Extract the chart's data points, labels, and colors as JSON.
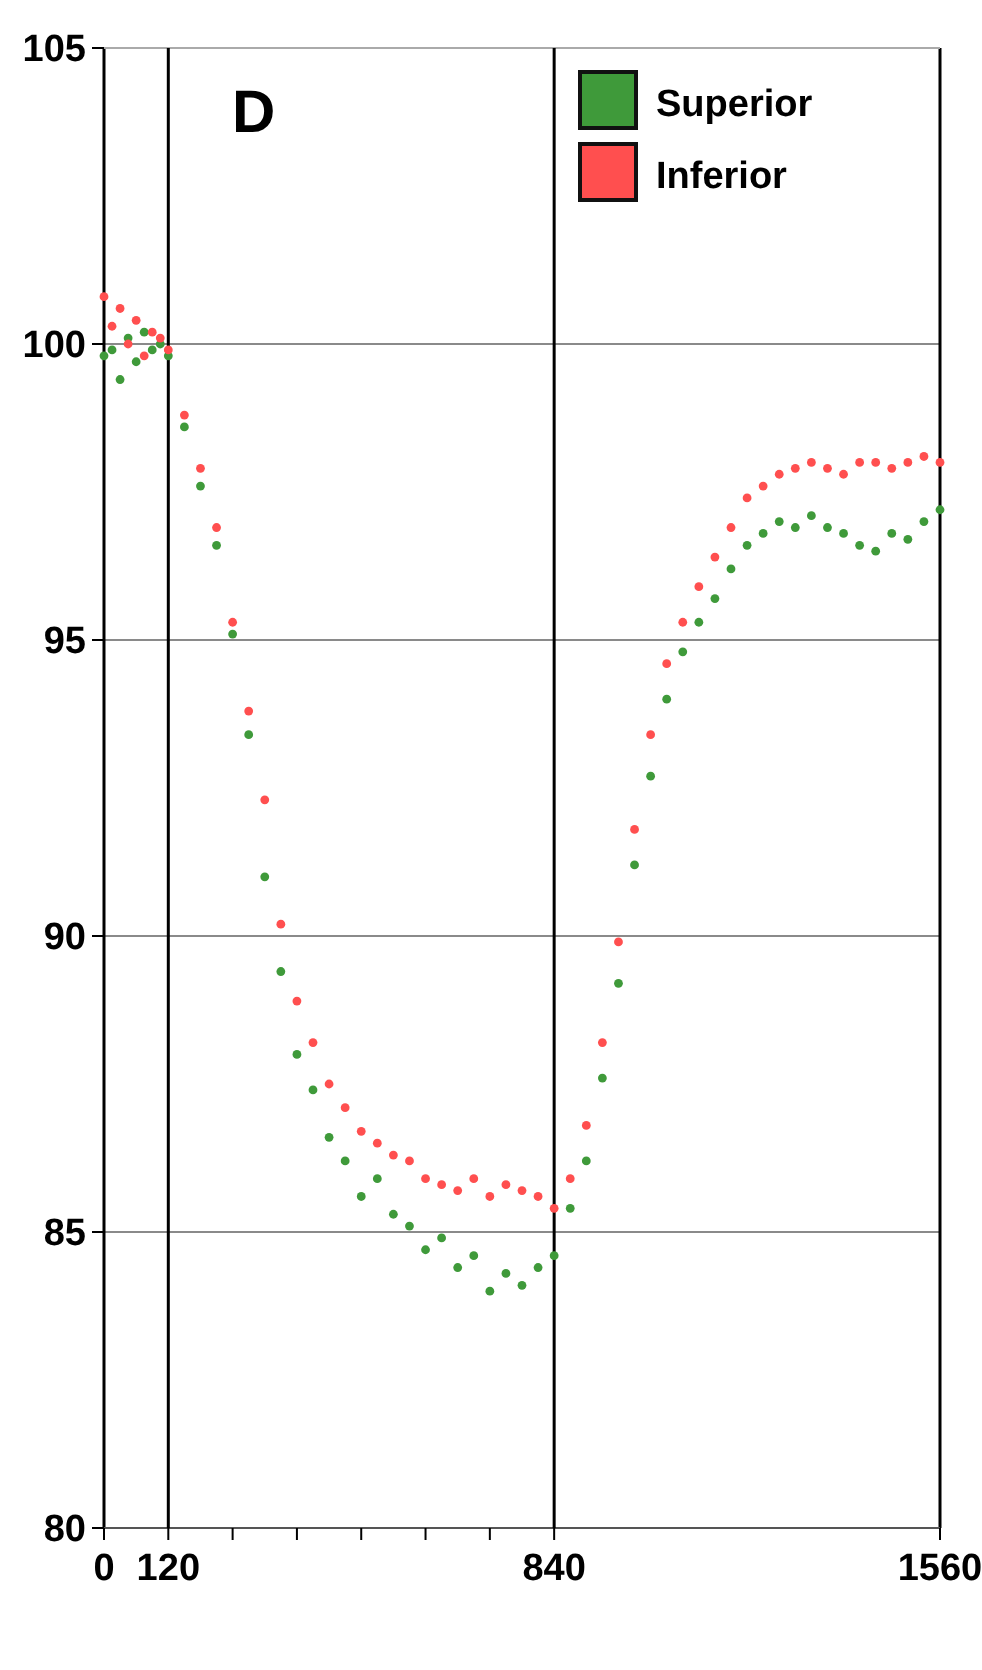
{
  "chart_data": {
    "type": "scatter",
    "annotations": [
      "D"
    ],
    "x": [
      0,
      15,
      30,
      45,
      60,
      75,
      90,
      105,
      120,
      150,
      180,
      210,
      240,
      270,
      300,
      330,
      360,
      390,
      420,
      450,
      480,
      510,
      540,
      570,
      600,
      630,
      660,
      690,
      720,
      750,
      780,
      810,
      840,
      870,
      900,
      930,
      960,
      990,
      1020,
      1050,
      1080,
      1110,
      1140,
      1170,
      1200,
      1230,
      1260,
      1290,
      1320,
      1350,
      1380,
      1410,
      1440,
      1470,
      1500,
      1530,
      1560
    ],
    "series": [
      {
        "name": "Superior",
        "color": "#3f9a3a",
        "values": [
          99.8,
          99.9,
          99.4,
          100.1,
          99.7,
          100.2,
          99.9,
          100.0,
          99.8,
          98.6,
          97.6,
          96.6,
          95.1,
          93.4,
          91.0,
          89.4,
          88.0,
          87.4,
          86.6,
          86.2,
          85.6,
          85.9,
          85.3,
          85.1,
          84.7,
          84.9,
          84.4,
          84.6,
          84.0,
          84.3,
          84.1,
          84.4,
          84.6,
          85.4,
          86.2,
          87.6,
          89.2,
          91.2,
          92.7,
          94.0,
          94.8,
          95.3,
          95.7,
          96.2,
          96.6,
          96.8,
          97.0,
          96.9,
          97.1,
          96.9,
          96.8,
          96.6,
          96.5,
          96.8,
          96.7,
          97.0,
          97.2
        ]
      },
      {
        "name": "Inferior",
        "color": "#ff4f4f",
        "values": [
          100.8,
          100.3,
          100.6,
          100.0,
          100.4,
          99.8,
          100.2,
          100.1,
          99.9,
          98.8,
          97.9,
          96.9,
          95.3,
          93.8,
          92.3,
          90.2,
          88.9,
          88.2,
          87.5,
          87.1,
          86.7,
          86.5,
          86.3,
          86.2,
          85.9,
          85.8,
          85.7,
          85.9,
          85.6,
          85.8,
          85.7,
          85.6,
          85.4,
          85.9,
          86.8,
          88.2,
          89.9,
          91.8,
          93.4,
          94.6,
          95.3,
          95.9,
          96.4,
          96.9,
          97.4,
          97.6,
          97.8,
          97.9,
          98.0,
          97.9,
          97.8,
          98.0,
          98.0,
          97.9,
          98.0,
          98.1,
          98.0
        ]
      }
    ],
    "xlim": [
      0,
      1560
    ],
    "xticks": [
      0,
      120,
      {
        "value": 240,
        "label": null
      },
      {
        "value": 360,
        "label": null
      },
      {
        "value": 480,
        "label": null
      },
      {
        "value": 600,
        "label": null
      },
      {
        "value": 720,
        "label": null
      },
      840,
      1560
    ],
    "ylim": [
      80,
      105
    ],
    "yticks": [
      80,
      85,
      90,
      95,
      100,
      105
    ],
    "grid": "y",
    "marker": "circle",
    "legend": "top",
    "ref_lines": [
      {
        "axis": "x",
        "value": 120,
        "color": "#000000"
      },
      {
        "axis": "x",
        "value": 840,
        "color": "#000000"
      }
    ]
  }
}
